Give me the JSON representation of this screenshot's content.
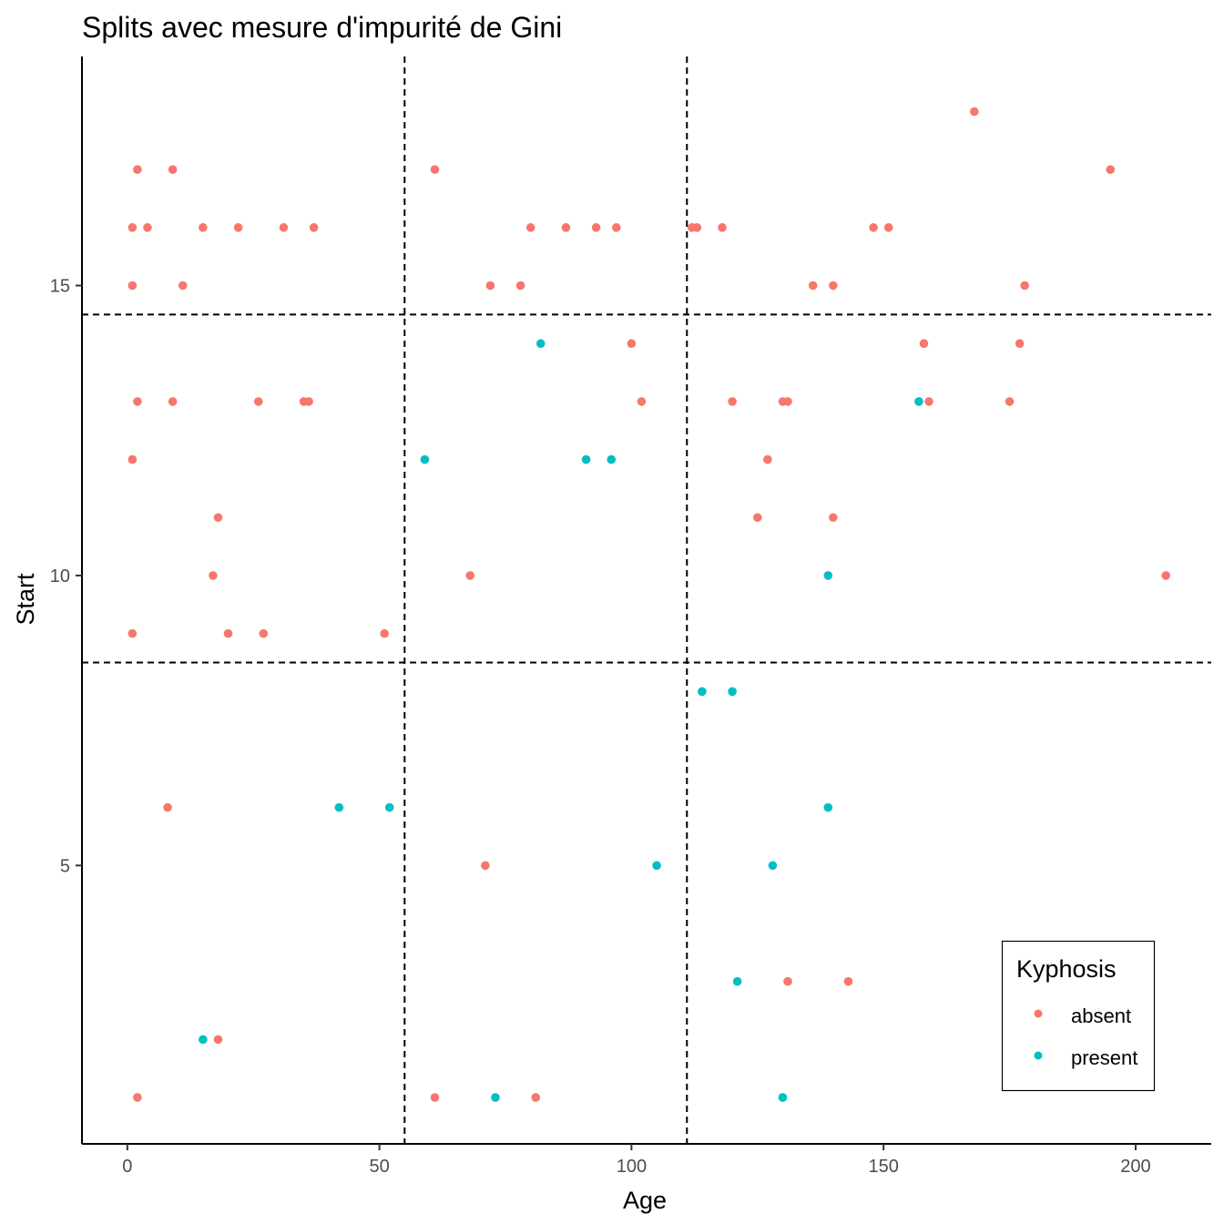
{
  "chart_data": {
    "type": "scatter",
    "title": "Splits avec mesure d'impurité de Gini",
    "xlabel": "Age",
    "ylabel": "Start",
    "xlim": [
      -9,
      215
    ],
    "ylim": [
      0.2,
      18.95
    ],
    "x_ticks": [
      0,
      50,
      100,
      150,
      200
    ],
    "y_ticks": [
      5,
      10,
      15
    ],
    "grid": false,
    "legend": {
      "title": "Kyphosis",
      "placement": "bottom-right"
    },
    "split_lines": {
      "vertical_x": [
        55,
        111
      ],
      "horizontal_y": [
        8.5,
        14.5
      ],
      "style": "dashed"
    },
    "series": [
      {
        "name": "absent",
        "color": "#F8766D",
        "points": [
          [
            168,
            18
          ],
          [
            2,
            17
          ],
          [
            9,
            17
          ],
          [
            61,
            17
          ],
          [
            195,
            17
          ],
          [
            1,
            16
          ],
          [
            4,
            16
          ],
          [
            15,
            16
          ],
          [
            22,
            16
          ],
          [
            31,
            16
          ],
          [
            37,
            16
          ],
          [
            80,
            16
          ],
          [
            87,
            16
          ],
          [
            93,
            16
          ],
          [
            97,
            16
          ],
          [
            112,
            16
          ],
          [
            113,
            16
          ],
          [
            118,
            16
          ],
          [
            148,
            16
          ],
          [
            151,
            16
          ],
          [
            1,
            15
          ],
          [
            11,
            15
          ],
          [
            72,
            15
          ],
          [
            78,
            15
          ],
          [
            136,
            15
          ],
          [
            140,
            15
          ],
          [
            178,
            15
          ],
          [
            100,
            14
          ],
          [
            158,
            14
          ],
          [
            177,
            14
          ],
          [
            2,
            13
          ],
          [
            9,
            13
          ],
          [
            26,
            13
          ],
          [
            35,
            13
          ],
          [
            36,
            13
          ],
          [
            102,
            13
          ],
          [
            120,
            13
          ],
          [
            130,
            13
          ],
          [
            131,
            13
          ],
          [
            159,
            13
          ],
          [
            175,
            13
          ],
          [
            1,
            12
          ],
          [
            127,
            12
          ],
          [
            18,
            11
          ],
          [
            125,
            11
          ],
          [
            140,
            11
          ],
          [
            17,
            10
          ],
          [
            68,
            10
          ],
          [
            206,
            10
          ],
          [
            1,
            9
          ],
          [
            20,
            9
          ],
          [
            27,
            9
          ],
          [
            51,
            9
          ],
          [
            8,
            6
          ],
          [
            71,
            5
          ],
          [
            131,
            3
          ],
          [
            143,
            3
          ],
          [
            18,
            2
          ],
          [
            2,
            1
          ],
          [
            61,
            1
          ],
          [
            81,
            1
          ]
        ]
      },
      {
        "name": "present",
        "color": "#00BFC4",
        "points": [
          [
            82,
            14
          ],
          [
            157,
            13
          ],
          [
            59,
            12
          ],
          [
            91,
            12
          ],
          [
            96,
            12
          ],
          [
            139,
            10
          ],
          [
            114,
            8
          ],
          [
            120,
            8
          ],
          [
            42,
            6
          ],
          [
            52,
            6
          ],
          [
            139,
            6
          ],
          [
            105,
            5
          ],
          [
            128,
            5
          ],
          [
            121,
            3
          ],
          [
            15,
            2
          ],
          [
            73,
            1
          ],
          [
            130,
            1
          ]
        ]
      }
    ]
  }
}
